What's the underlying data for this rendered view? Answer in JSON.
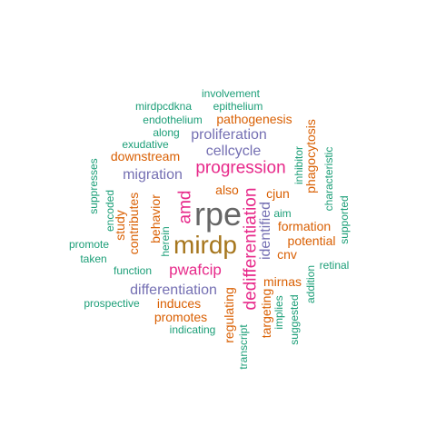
{
  "colors": {
    "teal": "#1b9e77",
    "orange": "#d95f02",
    "purple": "#7570b3",
    "magenta": "#e7298a",
    "gold": "#a6761d",
    "gray": "#666666"
  },
  "words": [
    {
      "text": "rpe",
      "color": "gray"
    },
    {
      "text": "mirdp",
      "color": "gold"
    },
    {
      "text": "dedifferentiation",
      "color": "magenta"
    },
    {
      "text": "progression",
      "color": "magenta"
    },
    {
      "text": "amd",
      "color": "magenta"
    },
    {
      "text": "pwafcip",
      "color": "magenta"
    },
    {
      "text": "identified",
      "color": "purple"
    },
    {
      "text": "differentiation",
      "color": "purple"
    },
    {
      "text": "migration",
      "color": "purple"
    },
    {
      "text": "proliferation",
      "color": "purple"
    },
    {
      "text": "cellcycle",
      "color": "purple"
    },
    {
      "text": "pathogenesis",
      "color": "orange"
    },
    {
      "text": "downstream",
      "color": "orange"
    },
    {
      "text": "phagocytosis",
      "color": "orange"
    },
    {
      "text": "cjun",
      "color": "orange"
    },
    {
      "text": "also",
      "color": "orange"
    },
    {
      "text": "formation",
      "color": "orange"
    },
    {
      "text": "potential",
      "color": "orange"
    },
    {
      "text": "cnv",
      "color": "orange"
    },
    {
      "text": "mirnas",
      "color": "orange"
    },
    {
      "text": "targeting",
      "color": "orange"
    },
    {
      "text": "regulating",
      "color": "orange"
    },
    {
      "text": "induces",
      "color": "orange"
    },
    {
      "text": "promotes",
      "color": "orange"
    },
    {
      "text": "study",
      "color": "orange"
    },
    {
      "text": "contributes",
      "color": "orange"
    },
    {
      "text": "behavior",
      "color": "orange"
    },
    {
      "text": "involvement",
      "color": "teal"
    },
    {
      "text": "epithelium",
      "color": "teal"
    },
    {
      "text": "mirdpcdkna",
      "color": "teal"
    },
    {
      "text": "endothelium",
      "color": "teal"
    },
    {
      "text": "along",
      "color": "teal"
    },
    {
      "text": "exudative",
      "color": "teal"
    },
    {
      "text": "inhibitor",
      "color": "teal"
    },
    {
      "text": "aim",
      "color": "teal"
    },
    {
      "text": "characteristic",
      "color": "teal"
    },
    {
      "text": "supported",
      "color": "teal"
    },
    {
      "text": "suppresses",
      "color": "teal"
    },
    {
      "text": "encoded",
      "color": "teal"
    },
    {
      "text": "herein",
      "color": "teal"
    },
    {
      "text": "promote",
      "color": "teal"
    },
    {
      "text": "taken",
      "color": "teal"
    },
    {
      "text": "function",
      "color": "teal"
    },
    {
      "text": "retinal",
      "color": "teal"
    },
    {
      "text": "addition",
      "color": "teal"
    },
    {
      "text": "suggested",
      "color": "teal"
    },
    {
      "text": "implies",
      "color": "teal"
    },
    {
      "text": "prospective",
      "color": "teal"
    },
    {
      "text": "indicating",
      "color": "teal"
    },
    {
      "text": "transcript",
      "color": "teal"
    }
  ]
}
